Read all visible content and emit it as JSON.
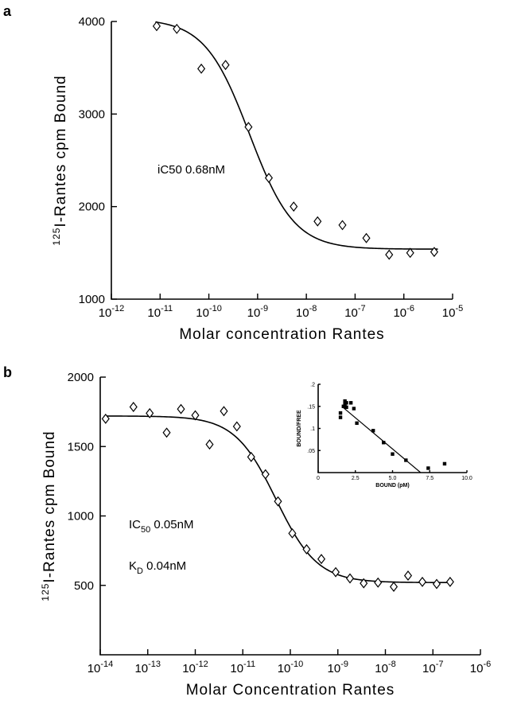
{
  "chart_data": [
    {
      "panel": "a",
      "type": "scatter",
      "xscale": "log",
      "xlim": [
        1e-12,
        1e-05
      ],
      "ylim": [
        1000,
        4000
      ],
      "xticks": [
        1e-12,
        1e-11,
        1e-10,
        1e-09,
        1e-08,
        1e-07,
        1e-06,
        1e-05
      ],
      "xticklabels": [
        "10^-12",
        "10^-11",
        "10^-10",
        "10^-9",
        "10^-8",
        "10^-7",
        "10^-6",
        "10^-5"
      ],
      "yticks": [
        1000,
        2000,
        3000,
        4000
      ],
      "yticklabels": [
        "1000",
        "2000",
        "3000",
        "4000"
      ],
      "xlabel": "Molar concentration Rantes",
      "ylabel": "125I-Rantes cpm Bound",
      "annotations": [
        "iC50  0.68nM"
      ],
      "x": [
        8.5e-12,
        2.2e-11,
        7e-11,
        2.2e-10,
        6.5e-10,
        1.7e-09,
        5.5e-09,
        1.7e-08,
        5.5e-08,
        1.7e-07,
        5e-07,
        1.35e-06,
        4.2e-06
      ],
      "y": [
        3950,
        3920,
        3490,
        3530,
        2860,
        2310,
        2000,
        1840,
        1800,
        1660,
        1480,
        1500,
        1510
      ],
      "fit": {
        "model": "one-site competition",
        "top": 4030,
        "bottom": 1540,
        "ic50": 6.8e-10,
        "hill": 0.95
      }
    },
    {
      "panel": "b",
      "type": "scatter",
      "xscale": "log",
      "xlim": [
        1e-14,
        1e-06
      ],
      "ylim": [
        0,
        2000
      ],
      "xticks": [
        1e-14,
        1e-13,
        1e-12,
        1e-11,
        1e-10,
        1e-09,
        1e-08,
        1e-07,
        1e-06
      ],
      "xticklabels": [
        "10^-14",
        "10^-13",
        "10^-12",
        "10^-11",
        "10^-10",
        "10^-9",
        "10^-8",
        "10^-7",
        "10^-6"
      ],
      "yticks": [
        500,
        1000,
        1500,
        2000
      ],
      "yticklabels": [
        "500",
        "1000",
        "1500",
        "2000"
      ],
      "xlabel": "Molar Concentration Rantes",
      "ylabel": "125I-Rantes cpm Bound",
      "annotations": [
        "IC50  0.05nM",
        "KD  0.04nM"
      ],
      "x": [
        1.3e-14,
        5e-14,
        1.1e-13,
        2.5e-13,
        5e-13,
        1e-12,
        2e-12,
        4e-12,
        7.5e-12,
        1.5e-11,
        3e-11,
        5.5e-11,
        1.1e-10,
        2.2e-10,
        4.5e-10,
        9e-10,
        1.8e-09,
        3.5e-09,
        7e-09,
        1.5e-08,
        3e-08,
        6e-08,
        1.2e-07,
        2.3e-07
      ],
      "y": [
        1700,
        1785,
        1740,
        1600,
        1770,
        1725,
        1515,
        1755,
        1645,
        1425,
        1300,
        1105,
        875,
        760,
        690,
        595,
        550,
        515,
        520,
        490,
        570,
        525,
        510,
        525
      ],
      "fit": {
        "model": "one-site competition",
        "top": 1720,
        "bottom": 520,
        "ic50": 5e-11,
        "hill": 1.0
      }
    },
    {
      "panel": "b-inset",
      "type": "scatter",
      "xlim": [
        0,
        10
      ],
      "ylim": [
        0,
        0.2
      ],
      "xticks": [
        0,
        2.5,
        5,
        7.5,
        10
      ],
      "xticklabels": [
        "0",
        "2.5",
        "5.0",
        "7.5",
        "10.0"
      ],
      "yticks": [
        0.05,
        0.1,
        0.15,
        0.2
      ],
      "yticklabels": [
        ".05",
        ".1",
        ".15",
        ".2"
      ],
      "xlabel": "BOUND (pM)",
      "ylabel": "BOUND/FREE",
      "x": [
        1.5,
        1.5,
        1.7,
        1.8,
        1.9,
        1.8,
        1.9,
        2.2,
        2.4,
        2.6,
        3.7,
        4.4,
        5.0,
        5.9,
        7.4,
        8.5
      ],
      "y": [
        0.135,
        0.125,
        0.15,
        0.155,
        0.158,
        0.162,
        0.148,
        0.158,
        0.145,
        0.112,
        0.095,
        0.068,
        0.042,
        0.028,
        0.01,
        0.02
      ],
      "fit": {
        "type": "linear",
        "slope": -0.0283,
        "intercept": 0.195
      }
    }
  ],
  "ui": {
    "panel_a_letter": "a",
    "panel_b_letter": "b"
  }
}
